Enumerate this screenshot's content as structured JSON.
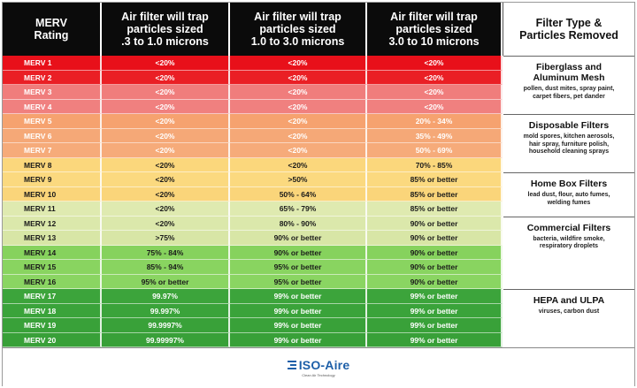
{
  "header": {
    "col0": "MERV\nRating",
    "col1": "Air filter will trap\nparticles sized\n.3 to 1.0 microns",
    "col2": "Air filter will trap\nparticles sized\n1.0 to 3.0 microns",
    "col3": "Air filter will trap\nparticles sized\n3.0 to 10 microns",
    "col4": "Filter Type &\nParticles Removed"
  },
  "rows": [
    {
      "rating": "MERV 1",
      "a": "<20%",
      "b": "<20%",
      "c": "<20%",
      "bg": "#e8101a",
      "tone": "light"
    },
    {
      "rating": "MERV 2",
      "a": "<20%",
      "b": "<20%",
      "c": "<20%",
      "bg": "#ea1f25",
      "tone": "light"
    },
    {
      "rating": "MERV 3",
      "a": "<20%",
      "b": "<20%",
      "c": "<20%",
      "bg": "#f07d7c",
      "tone": "light"
    },
    {
      "rating": "MERV 4",
      "a": "<20%",
      "b": "<20%",
      "c": "<20%",
      "bg": "#f0807f",
      "tone": "light"
    },
    {
      "rating": "MERV 5",
      "a": "<20%",
      "b": "<20%",
      "c": "20% - 34%",
      "bg": "#f6a26f",
      "tone": "light"
    },
    {
      "rating": "MERV 6",
      "a": "<20%",
      "b": "<20%",
      "c": "35% - 49%",
      "bg": "#f5a877",
      "tone": "light"
    },
    {
      "rating": "MERV 7",
      "a": "<20%",
      "b": "<20%",
      "c": "50% - 69%",
      "bg": "#f6ab7a",
      "tone": "light"
    },
    {
      "rating": "MERV 8",
      "a": "<20%",
      "b": "<20%",
      "c": "70% - 85%",
      "bg": "#fbd77c",
      "tone": "dark"
    },
    {
      "rating": "MERV 9",
      "a": "<20%",
      "b": ">50%",
      "c": "85% or better",
      "bg": "#fbd97f",
      "tone": "dark"
    },
    {
      "rating": "MERV 10",
      "a": "<20%",
      "b": "50% - 64%",
      "c": "85% or better",
      "bg": "#fad57a",
      "tone": "dark"
    },
    {
      "rating": "MERV 11",
      "a": "<20%",
      "b": "65% - 79%",
      "c": "85% or better",
      "bg": "#dfeab0",
      "tone": "lgreen"
    },
    {
      "rating": "MERV 12",
      "a": "<20%",
      "b": "80% - 90%",
      "c": "90% or better",
      "bg": "#dbe8ab",
      "tone": "lgreen"
    },
    {
      "rating": "MERV 13",
      "a": ">75%",
      "b": "90% or better",
      "c": "90% or better",
      "bg": "#d8e6a6",
      "tone": "lgreen"
    },
    {
      "rating": "MERV 14",
      "a": "75% - 84%",
      "b": "90% or better",
      "c": "90% or better",
      "bg": "#86d25d",
      "tone": "lgreen"
    },
    {
      "rating": "MERV 15",
      "a": "85% - 94%",
      "b": "95% or better",
      "c": "90% or better",
      "bg": "#89d460",
      "tone": "lgreen"
    },
    {
      "rating": "MERV 16",
      "a": "95% or better",
      "b": "95% or better",
      "c": "90% or better",
      "bg": "#8ad562",
      "tone": "lgreen"
    },
    {
      "rating": "MERV 17",
      "a": "99.97%",
      "b": "99% or better",
      "c": "99% or better",
      "bg": "#3ca43b",
      "tone": "light"
    },
    {
      "rating": "MERV 18",
      "a": "99.997%",
      "b": "99% or better",
      "c": "99% or better",
      "bg": "#3aa33a",
      "tone": "light"
    },
    {
      "rating": "MERV 19",
      "a": "99.9997%",
      "b": "99% or better",
      "c": "99% or better",
      "bg": "#39a139",
      "tone": "light"
    },
    {
      "rating": "MERV 20",
      "a": "99.99997%",
      "b": "99% or better",
      "c": "99% or better",
      "bg": "#38a038",
      "tone": "light"
    }
  ],
  "filter_types": [
    {
      "name": "Fiberglass and\nAluminum Mesh",
      "desc": "pollen, dust mites, spray paint,\ncarpet fibers, pet dander",
      "start_row": 0,
      "row_count": 4
    },
    {
      "name": "Disposable Filters",
      "desc": "mold spores, kitchen aerosols,\nhair spray, furniture polish,\nhousehold cleaning sprays",
      "start_row": 4,
      "row_count": 4
    },
    {
      "name": "Home Box Filters",
      "desc": "lead dust, flour, auto fumes,\nwelding fumes",
      "start_row": 8,
      "row_count": 3
    },
    {
      "name": "Commercial Filters",
      "desc": "bacteria, wildfire smoke,\nrespiratory droplets",
      "start_row": 11,
      "row_count": 5
    },
    {
      "name": "HEPA and ULPA",
      "desc": "viruses, carbon dust",
      "start_row": 16,
      "row_count": 4
    }
  ],
  "footer": {
    "logo_text": "ISO-Aire",
    "logo_tagline": "Clean Air Technology"
  }
}
